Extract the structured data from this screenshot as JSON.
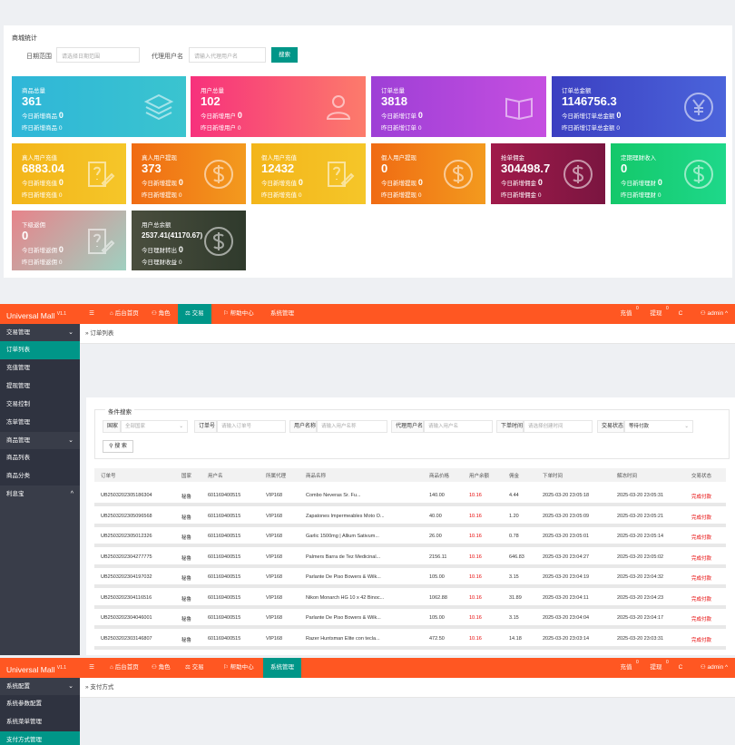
{
  "stats": {
    "title": "商城统计",
    "date_label": "日期范围",
    "date_placeholder": "请选择日期范围",
    "agent_label": "代理用户名",
    "agent_placeholder": "请输入代理用户名",
    "search_label": "搜索",
    "cards": [
      {
        "title": "商品总量",
        "value": "361",
        "line1": "今日新增商品",
        "v1": "0",
        "line2": "昨日新增商品",
        "v2": "0",
        "icon": "layers-icon",
        "bg": "linear-gradient(90deg,#2fb6d8,#3ac4cf)"
      },
      {
        "title": "用户总量",
        "value": "102",
        "line1": "今日新增用户",
        "v1": "0",
        "line2": "昨日新增用户",
        "v2": "0",
        "icon": "users-icon",
        "bg": "linear-gradient(90deg,#f7317c,#fc7b6b)"
      },
      {
        "title": "订单总量",
        "value": "3818",
        "line1": "今日新增订单",
        "v1": "0",
        "line2": "昨日新增订单",
        "v2": "0",
        "icon": "book-icon",
        "bg": "linear-gradient(90deg,#9e3fd6,#c54fe0)"
      },
      {
        "title": "订单总金额",
        "value": "1146756.3",
        "line1": "今日新增订单总金额",
        "v1": "0",
        "line2": "昨日新增订单总金额",
        "v2": "0",
        "icon": "yen-icon",
        "bg": "linear-gradient(90deg,#3b3fc1,#4b64db)"
      },
      {
        "title": "真人用户充值",
        "value": "6883.04",
        "line1": "今日新增充值",
        "v1": "0",
        "line2": "昨日新增充值",
        "v2": "0",
        "icon": "document-pen-icon",
        "bg": "linear-gradient(90deg,#f3b51a,#f5c629)"
      },
      {
        "title": "真人用户提现",
        "value": "373",
        "line1": "今日新增提现",
        "v1": "0",
        "line2": "昨日新增提现",
        "v2": "0",
        "icon": "dollar-icon",
        "bg": "linear-gradient(90deg,#f06b13,#f39a1e)"
      },
      {
        "title": "假人用户充值",
        "value": "12432",
        "line1": "今日新增充值",
        "v1": "0",
        "line2": "昨日新增充值",
        "v2": "0",
        "icon": "document-pen-icon",
        "bg": "linear-gradient(90deg,#f3b51a,#f5c629)"
      },
      {
        "title": "假人用户提现",
        "value": "0",
        "line1": "今日新增提现",
        "v1": "0",
        "line2": "昨日新增提现",
        "v2": "0",
        "icon": "dollar-icon",
        "bg": "linear-gradient(90deg,#f06b13,#f39a1e)"
      },
      {
        "title": "抢单佣金",
        "value": "304498.7",
        "line1": "今日新增佣金",
        "v1": "0",
        "line2": "昨日新增佣金",
        "v2": "0",
        "icon": "dollar-icon",
        "bg": "linear-gradient(90deg,#a01a4a,#7a1540)"
      },
      {
        "title": "定期理财收入",
        "value": "0",
        "line1": "今日新增理财",
        "v1": "0",
        "line2": "昨日新增理财",
        "v2": "0",
        "icon": "dollar-icon",
        "bg": "linear-gradient(90deg,#14c86a,#1ed88a)"
      },
      {
        "title": "下级返佣",
        "value": "0",
        "line1": "今日新增返佣",
        "v1": "0",
        "line2": "昨日新增返佣",
        "v2": "0",
        "icon": "document-pen-icon",
        "bg": "linear-gradient(135deg,#e7838a,#9fd0c0)"
      },
      {
        "title": "用户总余额",
        "value": "2537.41(41170.67)",
        "line1": "今日理财转出",
        "v1": "0",
        "line2": "今日理财收益",
        "v2": "0",
        "icon": "dollar-icon",
        "bg": "linear-gradient(90deg,#4a4e3e,#2f3a2c)"
      }
    ]
  },
  "admin": {
    "logo": "Universal Mall",
    "version": "V1.1",
    "nav": [
      "后台首页",
      "角色",
      "交易",
      "帮助中心",
      "系统管理"
    ],
    "right_nav": {
      "recharge": "充值",
      "recharge_badge": "0",
      "withdraw": "提现",
      "withdraw_badge": "0",
      "refresh": "C",
      "user": "admin"
    }
  },
  "orders_view": {
    "breadcrumb": "订单列表",
    "sidebar": [
      {
        "type": "group",
        "label": "交易管理",
        "chev": "⌄"
      },
      {
        "type": "item",
        "label": "订单列表",
        "active": true
      },
      {
        "type": "item",
        "label": "充值管理"
      },
      {
        "type": "item",
        "label": "提现管理"
      },
      {
        "type": "item",
        "label": "交易控制"
      },
      {
        "type": "item",
        "label": "冻单管理"
      },
      {
        "type": "group",
        "label": "商品管理",
        "chev": "⌄"
      },
      {
        "type": "item",
        "label": "商品列表"
      },
      {
        "type": "item",
        "label": "商品分类"
      },
      {
        "type": "group",
        "label": "利息宝",
        "chev": "^"
      }
    ],
    "filter": {
      "legend": "条件搜索",
      "country_label": "国家",
      "country_placeholder": "全部国家",
      "order_label": "订单号",
      "order_placeholder": "请输入订单号",
      "user_label": "用户名称",
      "user_placeholder": "请输入用户名称",
      "agent_label": "代理用户名",
      "agent_placeholder": "请输入用户名",
      "time_label": "下单时间",
      "time_placeholder": "请选择创建时间",
      "status_label": "交易状态",
      "status_value": "等待付款",
      "search_button": "搜 索"
    },
    "columns": [
      "订单号",
      "国家",
      "用户名",
      "所属代理",
      "商品名称",
      "商品价格",
      "用户余额",
      "佣金",
      "下单时间",
      "解冻时间",
      "交易状态"
    ],
    "rows": [
      [
        "UB2503202305186304",
        "秘鲁",
        "601169400515",
        "VIP168",
        "Combo Neveras Sr. Fu...",
        "140.00",
        "10.16",
        "4.44",
        "2025-03-20 23:05:18",
        "2025-03-20 23:05:31",
        "完成付款"
      ],
      [
        "UB2503202305096568",
        "秘鲁",
        "601169400515",
        "VIP168",
        "Zapatones Impermeables Moto O...",
        "40.00",
        "10.16",
        "1.20",
        "2025-03-20 23:05:09",
        "2025-03-20 23:05:21",
        "完成付款"
      ],
      [
        "UB2503202305012326",
        "秘鲁",
        "601169400515",
        "VIP168",
        "Garlic 1500mg | Allium Sativum...",
        "26.00",
        "10.16",
        "0.78",
        "2025-03-20 23:05:01",
        "2025-03-20 23:05:14",
        "完成付款"
      ],
      [
        "UB2503202304277775",
        "秘鲁",
        "601169400515",
        "VIP168",
        "Palmers Barra de Tez Medicinal...",
        "2156.11",
        "10.16",
        "646.83",
        "2025-03-20 23:04:27",
        "2025-03-20 23:05:02",
        "完成付款"
      ],
      [
        "UB2503202304197032",
        "秘鲁",
        "601169400515",
        "VIP168",
        "Parlante De Piso Bowers & Wilk...",
        "105.00",
        "10.16",
        "3.15",
        "2025-03-20 23:04:19",
        "2025-03-20 23:04:32",
        "完成付款"
      ],
      [
        "UB2503202304116516",
        "秘鲁",
        "601169400515",
        "VIP168",
        "Nikon Monarch HG 10 x 42 Binoc...",
        "1062.88",
        "10.16",
        "31.89",
        "2025-03-20 23:04:11",
        "2025-03-20 23:04:23",
        "完成付款"
      ],
      [
        "UB2503202304046001",
        "秘鲁",
        "601169400515",
        "VIP168",
        "Parlante De Piso Bowers & Wilk...",
        "105.00",
        "10.16",
        "3.15",
        "2025-03-20 23:04:04",
        "2025-03-20 23:04:17",
        "完成付款"
      ],
      [
        "UB2503202303146807",
        "秘鲁",
        "601169400515",
        "VIP168",
        "Razer Huntsman Elite con tecla...",
        "472.50",
        "10.16",
        "14.18",
        "2025-03-20 23:03:14",
        "2025-03-20 23:03:31",
        "完成付款"
      ]
    ]
  },
  "payment_view": {
    "breadcrumb": "支付方式",
    "sidebar": [
      {
        "type": "group",
        "label": "系统配置",
        "chev": "⌄"
      },
      {
        "type": "item",
        "label": "系统参数配置"
      },
      {
        "type": "item",
        "label": "系统菜单管理"
      },
      {
        "type": "item",
        "label": "支付方式管理",
        "active": true
      }
    ]
  }
}
